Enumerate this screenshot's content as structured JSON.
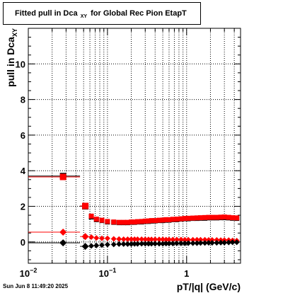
{
  "title": {
    "prefix": "Fitted pull in Dca",
    "subscript": "XY",
    "suffix": "for Global Rec Pion EtapT"
  },
  "timestamp": "Sun Jun  8 11:49:20 2025",
  "chart_data": {
    "type": "scatter",
    "title": "Fitted pull in Dca XY for Global Rec Pion EtapT",
    "xlabel": "pT/|q| (GeV/c)",
    "ylabel": "pull in Dca XY",
    "x_scale": "log",
    "xlim": [
      0.01,
      4.8
    ],
    "ylim": [
      -1.2,
      12
    ],
    "y_ticks": [
      0,
      2,
      4,
      6,
      8,
      10
    ],
    "x_tick_labels": [
      "10^-2",
      "10^-1",
      "1"
    ],
    "grid": true,
    "colors": {
      "red": "#ff0000",
      "black": "#000000",
      "darkred": "#cc0000"
    },
    "series": [
      {
        "color": "#000000",
        "marker": "square",
        "x": [
          0.0275,
          0.0525,
          0.0625,
          0.0725,
          0.085,
          0.1,
          0.12,
          0.14,
          0.16,
          0.18,
          0.2,
          0.22,
          0.24,
          0.27,
          0.3,
          0.33,
          0.36,
          0.4,
          0.45,
          0.5,
          0.55,
          0.6,
          0.67,
          0.75,
          0.85,
          0.95,
          1.05,
          1.2,
          1.35,
          1.5,
          1.7,
          1.9,
          2.1,
          2.4,
          2.7,
          3.0,
          3.4,
          3.8,
          4.3
        ],
        "y": [
          3.7,
          2.0,
          1.4,
          1.25,
          1.2,
          1.12,
          1.1,
          1.08,
          1.08,
          1.08,
          1.1,
          1.1,
          1.12,
          1.12,
          1.15,
          1.15,
          1.17,
          1.18,
          1.2,
          1.2,
          1.22,
          1.22,
          1.25,
          1.25,
          1.28,
          1.3,
          1.3,
          1.32,
          1.32,
          1.33,
          1.33,
          1.35,
          1.35,
          1.35,
          1.36,
          1.36,
          1.35,
          1.33,
          1.32
        ]
      },
      {
        "color": "#ff0000",
        "marker": "square",
        "x": [
          0.0275,
          0.0525,
          0.0625,
          0.0725,
          0.085,
          0.1,
          0.12,
          0.14,
          0.16,
          0.18,
          0.2,
          0.22,
          0.24,
          0.27,
          0.3,
          0.33,
          0.36,
          0.4,
          0.45,
          0.5,
          0.55,
          0.6,
          0.67,
          0.75,
          0.85,
          0.95,
          1.05,
          1.2,
          1.35,
          1.5,
          1.7,
          1.9,
          2.1,
          2.4,
          2.7,
          3.0,
          3.4,
          3.8,
          4.3
        ],
        "y": [
          3.65,
          2.02,
          1.45,
          1.28,
          1.22,
          1.15,
          1.12,
          1.1,
          1.1,
          1.1,
          1.12,
          1.12,
          1.14,
          1.15,
          1.17,
          1.18,
          1.2,
          1.2,
          1.22,
          1.23,
          1.25,
          1.25,
          1.27,
          1.28,
          1.3,
          1.32,
          1.33,
          1.34,
          1.35,
          1.36,
          1.37,
          1.38,
          1.38,
          1.38,
          1.39,
          1.4,
          1.38,
          1.36,
          1.35
        ]
      },
      {
        "color": "#ff0000",
        "marker": "diamond",
        "x": [
          0.0275,
          0.0525,
          0.0625,
          0.0725,
          0.085,
          0.1,
          0.12,
          0.14,
          0.16,
          0.18,
          0.2,
          0.22,
          0.24,
          0.27,
          0.3,
          0.33,
          0.36,
          0.4,
          0.45,
          0.5,
          0.55,
          0.6,
          0.67,
          0.75,
          0.85,
          0.95,
          1.05,
          1.2,
          1.35,
          1.5,
          1.7,
          1.9,
          2.1,
          2.4,
          2.7,
          3.0,
          3.4,
          3.8,
          4.3
        ],
        "y": [
          0.55,
          0.3,
          0.27,
          0.22,
          0.2,
          0.2,
          0.17,
          0.16,
          0.15,
          0.15,
          0.15,
          0.15,
          0.15,
          0.15,
          0.14,
          0.14,
          0.14,
          0.14,
          0.14,
          0.14,
          0.13,
          0.13,
          0.13,
          0.13,
          0.13,
          0.12,
          0.12,
          0.12,
          0.12,
          0.12,
          0.12,
          0.11,
          0.11,
          0.11,
          0.1,
          0.1,
          0.1,
          0.08,
          0.07
        ]
      },
      {
        "color": "#000000",
        "marker": "diamond",
        "x": [
          0.0275,
          0.0525,
          0.0625,
          0.0725,
          0.085,
          0.1,
          0.12,
          0.14,
          0.16,
          0.18,
          0.2,
          0.22,
          0.24,
          0.27,
          0.3,
          0.33,
          0.36,
          0.4,
          0.45,
          0.5,
          0.55,
          0.6,
          0.67,
          0.75,
          0.85,
          0.95,
          1.05,
          1.2,
          1.35,
          1.5,
          1.7,
          1.9,
          2.1,
          2.4,
          2.7,
          3.0,
          3.4,
          3.8,
          4.3
        ],
        "y": [
          -0.05,
          -0.25,
          -0.22,
          -0.2,
          -0.18,
          -0.15,
          -0.14,
          -0.12,
          -0.12,
          -0.12,
          -0.12,
          -0.11,
          -0.11,
          -0.1,
          -0.1,
          -0.1,
          -0.1,
          -0.1,
          -0.1,
          -0.1,
          -0.09,
          -0.09,
          -0.09,
          -0.08,
          -0.08,
          -0.08,
          -0.07,
          -0.07,
          -0.07,
          -0.06,
          -0.06,
          -0.05,
          -0.05,
          -0.05,
          -0.04,
          -0.04,
          -0.03,
          -0.02,
          -0.02
        ]
      }
    ]
  }
}
